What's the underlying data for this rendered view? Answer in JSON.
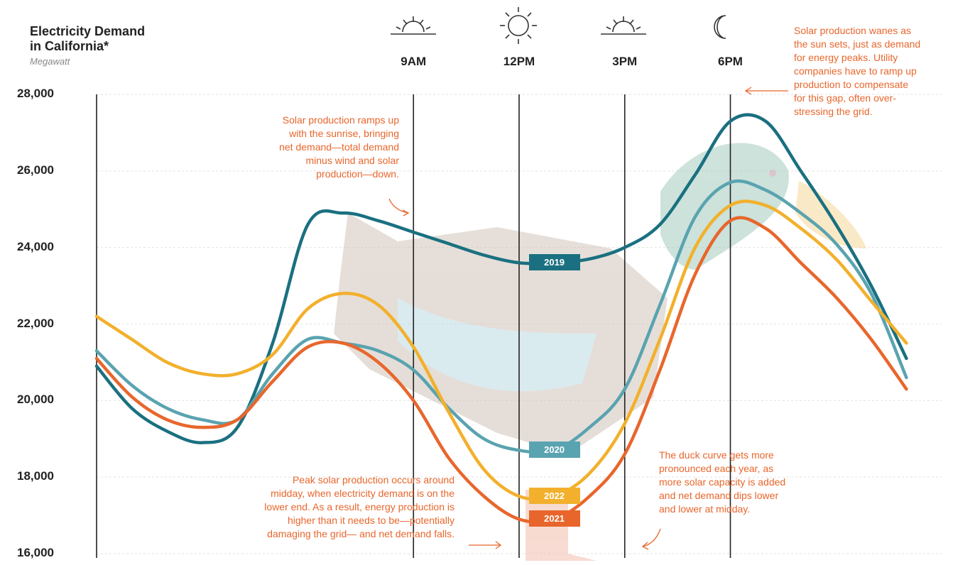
{
  "header": {
    "title_line1": "Electricity Demand",
    "title_line2": "in California*",
    "unit": "Megawatt"
  },
  "time_markers": [
    {
      "label": "9AM",
      "icon": "sunrise-icon",
      "hour": 9
    },
    {
      "label": "12PM",
      "icon": "sun-icon",
      "hour": 12
    },
    {
      "label": "3PM",
      "icon": "sunset-icon",
      "hour": 15
    },
    {
      "label": "6PM",
      "icon": "moon-icon",
      "hour": 18
    }
  ],
  "annotations": {
    "top_right": [
      "Solar production wanes as",
      "the sun sets, just as demand",
      "for energy peaks. Utility",
      "companies have to ramp up",
      "production to compensate",
      "for this gap, often over-",
      "stressing the grid."
    ],
    "morning": [
      "Solar production ramps up",
      "with the sunrise, bringing",
      "net demand—total demand",
      "minus wind and solar",
      "production—down."
    ],
    "midday": [
      "Peak solar production occurs around",
      "midday, when electricity demand is on the",
      "lower end. As a result, energy production is",
      "higher than it needs to be—potentially",
      "damaging the grid— and net demand falls."
    ],
    "duck": [
      "The duck curve gets more",
      "pronounced each year, as",
      "more solar capacity is added",
      "and net demand dips lower",
      "and lower at midday."
    ]
  },
  "colors": {
    "2019": "#1a7080",
    "2020": "#5aa3b0",
    "2021": "#e8662c",
    "2022": "#f2b02c",
    "accent": "#e8662c",
    "axis": "#222222"
  },
  "chart_data": {
    "type": "line",
    "title": "Electricity Demand in California*",
    "ylabel": "Megawatt",
    "ylim": [
      16000,
      28000
    ],
    "yticks": [
      "28,000",
      "26,000",
      "24,000",
      "22,000",
      "20,000",
      "18,000",
      "16,000"
    ],
    "ytick_values": [
      28000,
      26000,
      24000,
      22000,
      20000,
      18000,
      16000
    ],
    "xlim": [
      0,
      24
    ],
    "x": [
      0,
      1,
      2,
      3,
      4,
      5,
      6,
      7,
      8,
      9,
      10,
      11,
      12,
      13,
      14,
      15,
      16,
      17,
      18,
      19,
      20,
      21,
      22,
      23
    ],
    "series": [
      {
        "name": "2019",
        "values": [
          20900,
          19800,
          19200,
          18900,
          19300,
          21500,
          24600,
          24900,
          24700,
          24400,
          24100,
          23800,
          23600,
          23600,
          23700,
          24000,
          24600,
          25900,
          27300,
          27300,
          26000,
          24600,
          23000,
          21100
        ]
      },
      {
        "name": "2020",
        "values": [
          21300,
          20400,
          19800,
          19500,
          19500,
          20700,
          21600,
          21500,
          21300,
          20800,
          19800,
          19000,
          18700,
          18700,
          19300,
          20300,
          22500,
          24800,
          25700,
          25500,
          24900,
          24100,
          22800,
          20600
        ]
      },
      {
        "name": "2021",
        "values": [
          21100,
          20100,
          19500,
          19300,
          19500,
          20500,
          21400,
          21500,
          21000,
          20000,
          18500,
          17500,
          16900,
          16900,
          17500,
          18600,
          20800,
          23300,
          24700,
          24500,
          23600,
          22700,
          21600,
          20300
        ]
      },
      {
        "name": "2022",
        "values": [
          22200,
          21600,
          21000,
          20700,
          20700,
          21200,
          22400,
          22800,
          22500,
          21400,
          19700,
          18200,
          17500,
          17500,
          18100,
          19400,
          21600,
          24000,
          25100,
          25100,
          24500,
          23700,
          22600,
          21500
        ]
      }
    ]
  }
}
